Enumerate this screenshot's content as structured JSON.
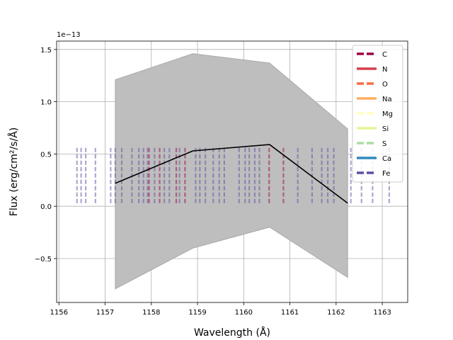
{
  "chart_data": {
    "type": "line",
    "xlabel": "Wavelength (Å)",
    "ylabel": "Flux (erg/cm²/s/Å)",
    "offset_text": "1e−13",
    "xlim": [
      1155.95,
      1163.55
    ],
    "ylim": [
      -0.92,
      1.58
    ],
    "x_ticks": [
      1156,
      1157,
      1158,
      1159,
      1160,
      1161,
      1162,
      1163
    ],
    "y_ticks": [
      -0.5,
      0.0,
      0.5,
      1.0,
      1.5
    ],
    "x_tick_labels": [
      "1156",
      "1157",
      "1158",
      "1159",
      "1160",
      "1161",
      "1162",
      "1163"
    ],
    "y_tick_labels": [
      "−0.5",
      "0.0",
      "0.5",
      "1.0",
      "1.5"
    ],
    "grid": true,
    "legend_position": "top-right",
    "series": [
      {
        "kind": "line",
        "color": "#000000",
        "x": [
          1157.22,
          1158.9,
          1160.56,
          1162.25
        ],
        "y": [
          0.22,
          0.53,
          0.59,
          0.03
        ]
      },
      {
        "kind": "band",
        "color": "#bebebe",
        "x": [
          1157.22,
          1158.9,
          1160.56,
          1162.25
        ],
        "y_low": [
          -0.79,
          -0.4,
          -0.2,
          -0.68
        ],
        "y_high": [
          1.21,
          1.46,
          1.37,
          0.74
        ]
      }
    ],
    "line_list_y_range": [
      0.03,
      0.58
    ],
    "line_lists": [
      {
        "name": "C",
        "color": "#9e0142",
        "dash": "dashed",
        "x": [
          1157.95,
          1158.18,
          1158.54,
          1158.73,
          1160.55,
          1160.86
        ]
      },
      {
        "name": "N",
        "color": "#d53e4f",
        "dash": "solid",
        "x": []
      },
      {
        "name": "O",
        "color": "#f46d43",
        "dash": "dashed",
        "x": []
      },
      {
        "name": "Na",
        "color": "#fdae61",
        "dash": "solid",
        "x": []
      },
      {
        "name": "Mg",
        "color": "#ffffbf",
        "dash": "dashed",
        "x": []
      },
      {
        "name": "Si",
        "color": "#e6f598",
        "dash": "solid",
        "x": []
      },
      {
        "name": "S",
        "color": "#abdda4",
        "dash": "dashed",
        "x": []
      },
      {
        "name": "Ca",
        "color": "#3288bd",
        "dash": "solid",
        "x": []
      },
      {
        "name": "Fe",
        "color": "#5e4fa2",
        "dash": "dashed",
        "x": [
          1156.39,
          1156.48,
          1156.58,
          1156.79,
          1157.12,
          1157.22,
          1157.36,
          1157.58,
          1157.73,
          1157.83,
          1157.92,
          1158.07,
          1158.28,
          1158.39,
          1158.61,
          1158.96,
          1159.05,
          1159.17,
          1159.34,
          1159.47,
          1159.58,
          1159.9,
          1160.03,
          1160.12,
          1160.24,
          1160.34,
          1161.17,
          1161.48,
          1161.69,
          1161.82,
          1161.95,
          1162.32,
          1162.55,
          1162.79,
          1163.15
        ]
      }
    ]
  }
}
